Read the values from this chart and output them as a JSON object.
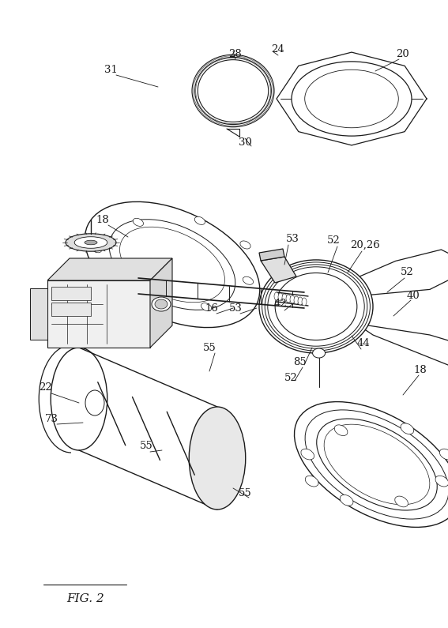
{
  "bg_color": "#ffffff",
  "line_color": "#1a1a1a",
  "fig_width": 5.67,
  "fig_height": 7.95,
  "dpi": 100
}
